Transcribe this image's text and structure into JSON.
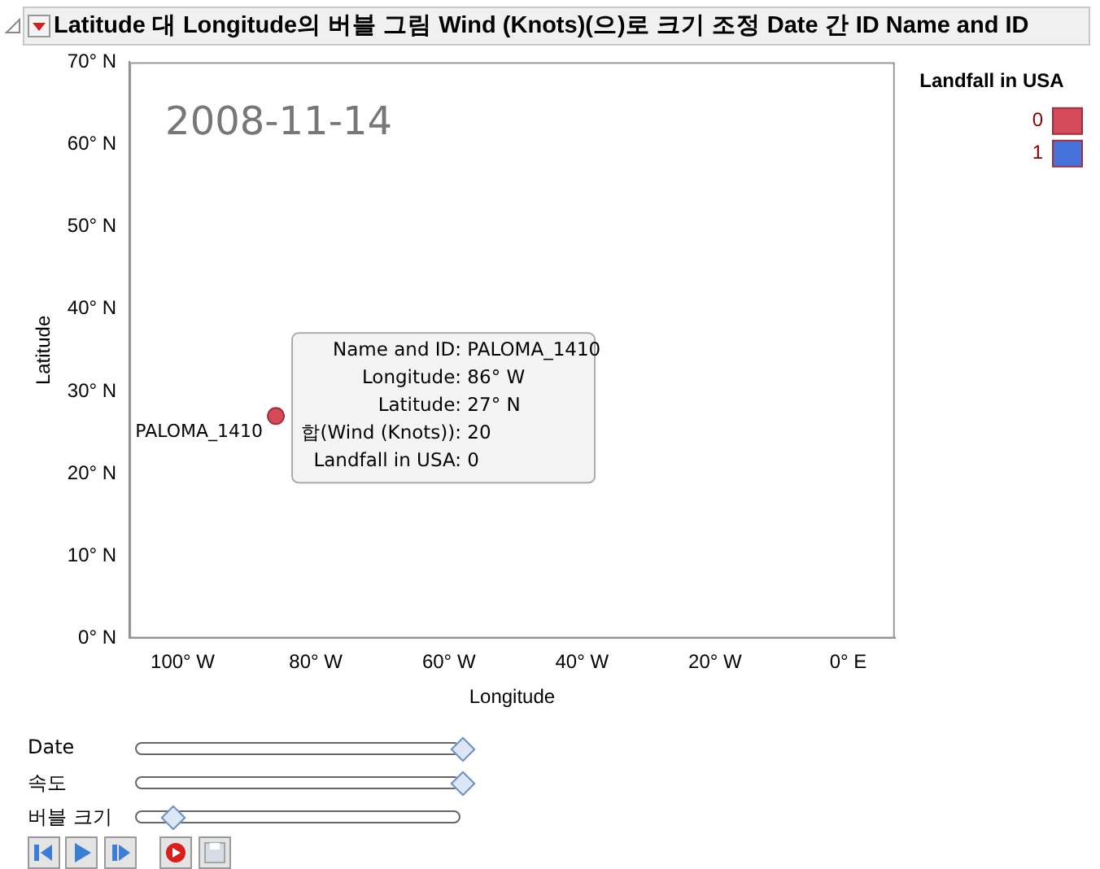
{
  "chart_data": {
    "type": "bubble",
    "title": "Latitude 대 Longitude의 버블 그림 Wind (Knots)(으)로 크기 조정 Date 간 ID Name and ID",
    "xlabel": "Longitude",
    "ylabel": "Latitude",
    "legend_title": "Landfall in USA",
    "legend": "top right",
    "grid": false,
    "xlim": [
      -108,
      7
    ],
    "xticks": [
      {
        "value": -100,
        "label": "100° W"
      },
      {
        "value": -80,
        "label": "80° W"
      },
      {
        "value": -60,
        "label": "60° W"
      },
      {
        "value": -40,
        "label": "40° W"
      },
      {
        "value": -20,
        "label": "20° W"
      },
      {
        "value": 0,
        "label": "0° E"
      }
    ],
    "ylim": [
      0,
      70
    ],
    "yticks": [
      {
        "value": 0,
        "label": "0° N"
      },
      {
        "value": 10,
        "label": "10° N"
      },
      {
        "value": 20,
        "label": "20° N"
      },
      {
        "value": 30,
        "label": "30° N"
      },
      {
        "value": 40,
        "label": "40° N"
      },
      {
        "value": 50,
        "label": "50° N"
      },
      {
        "value": 60,
        "label": "60° N"
      },
      {
        "value": 70,
        "label": "70° N"
      }
    ],
    "series": [
      {
        "name": "0",
        "color": "#d54a5a",
        "x": [
          -86
        ],
        "values": [
          27
        ],
        "sizes": [
          1
        ]
      },
      {
        "name": "1",
        "color": "#4672dc"
      }
    ],
    "annotations": [
      "2008-11-14",
      {
        "text": "PALOMA_1410",
        "x": -86,
        "y": 27
      },
      "Name and ID: PALOMA_1410",
      "Longitude: 86° W",
      "Latitude: 27° N",
      "합(Wind (Knots)): 20",
      "Landfall in USA: 0",
      "Date",
      "속도",
      "버블 크기"
    ]
  }
}
